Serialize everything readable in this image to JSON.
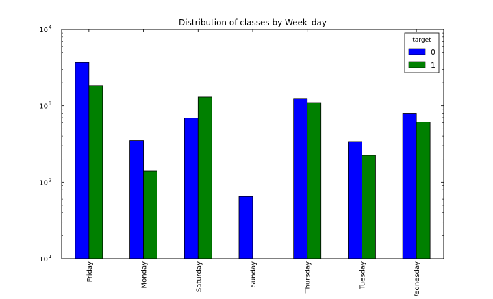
{
  "chart_data": {
    "type": "bar",
    "title": "Distribution of classes by Week_day",
    "xlabel": "",
    "ylabel": "",
    "yscale": "log",
    "ylim": [
      10,
      10000
    ],
    "y_ticks": [
      {
        "value": 10,
        "base": "10",
        "exp": "1"
      },
      {
        "value": 100,
        "base": "10",
        "exp": "2"
      },
      {
        "value": 1000,
        "base": "10",
        "exp": "3"
      },
      {
        "value": 10000,
        "base": "10",
        "exp": "4"
      }
    ],
    "categories": [
      "Friday",
      "Monday",
      "Saturday",
      "Sunday",
      "Thursday",
      "Tuesday",
      "Wednesday"
    ],
    "series": [
      {
        "name": "0",
        "color": "#0000ff",
        "values": [
          3700,
          350,
          690,
          65,
          1250,
          340,
          800
        ]
      },
      {
        "name": "1",
        "color": "#008000",
        "values": [
          1850,
          140,
          1300,
          null,
          1100,
          225,
          610
        ]
      }
    ],
    "legend": {
      "title": "target",
      "placement": "top-right"
    },
    "grid": false
  }
}
